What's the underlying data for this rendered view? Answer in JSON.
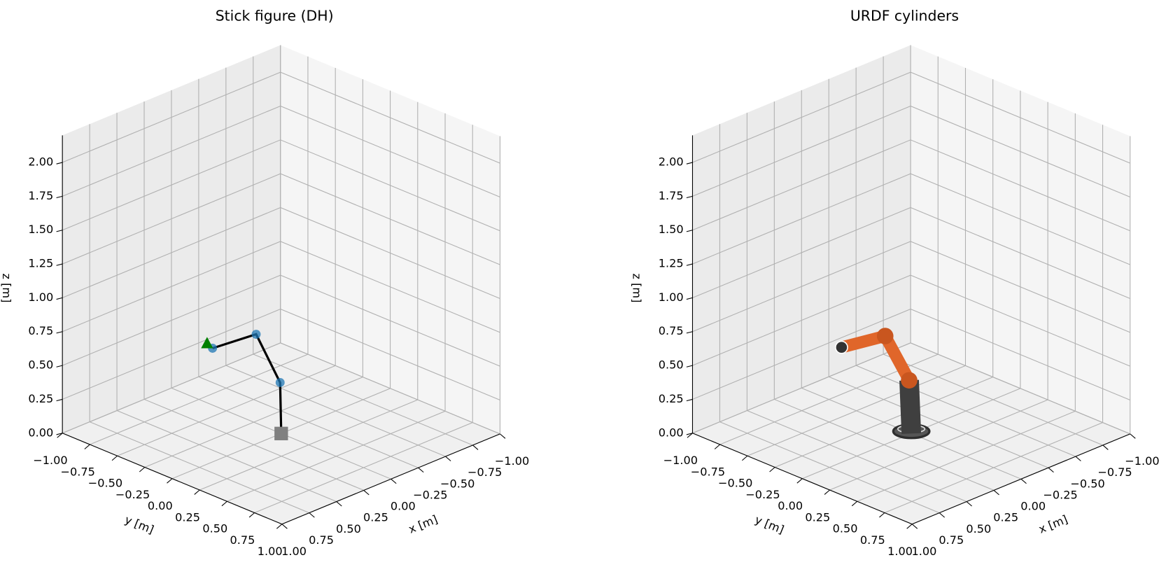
{
  "chart_data": [
    {
      "type": "stick",
      "title": "Stick figure (DH)",
      "xlabel": "x [m]",
      "ylabel": "y [m]",
      "zlabel": "z [m]",
      "xlim": [
        -1,
        1
      ],
      "ylim": [
        -1,
        1
      ],
      "zlim": [
        0,
        2.2
      ],
      "xticks": [
        {
          "value": -1,
          "label": "−1.00"
        },
        {
          "value": -0.75,
          "label": "−0.75"
        },
        {
          "value": -0.5,
          "label": "−0.50"
        },
        {
          "value": -0.25,
          "label": "−0.25"
        },
        {
          "value": 0,
          "label": "0.00"
        },
        {
          "value": 0.25,
          "label": "0.25"
        },
        {
          "value": 0.5,
          "label": "0.50"
        },
        {
          "value": 0.75,
          "label": "0.75"
        },
        {
          "value": 1,
          "label": "1.00"
        }
      ],
      "yticks": [
        {
          "value": -1,
          "label": "−1.00"
        },
        {
          "value": -0.75,
          "label": "−0.75"
        },
        {
          "value": -0.5,
          "label": "−0.50"
        },
        {
          "value": -0.25,
          "label": "−0.25"
        },
        {
          "value": 0,
          "label": "0.00"
        },
        {
          "value": 0.25,
          "label": "0.25"
        },
        {
          "value": 0.5,
          "label": "0.50"
        },
        {
          "value": 0.75,
          "label": "0.75"
        },
        {
          "value": 1,
          "label": "1.00"
        }
      ],
      "zticks": [
        {
          "value": 0,
          "label": "0.00"
        },
        {
          "value": 0.25,
          "label": "0.25"
        },
        {
          "value": 0.5,
          "label": "0.50"
        },
        {
          "value": 0.75,
          "label": "0.75"
        },
        {
          "value": 1,
          "label": "1.00"
        },
        {
          "value": 1.25,
          "label": "1.25"
        },
        {
          "value": 1.5,
          "label": "1.50"
        },
        {
          "value": 1.75,
          "label": "1.75"
        },
        {
          "value": 2,
          "label": "2.00"
        }
      ],
      "x": [
        0,
        0.01,
        0.23,
        0.63
      ],
      "y": [
        0,
        0,
        0,
        0
      ],
      "z": [
        0,
        0.38,
        0.81,
        0.84
      ],
      "color": "#000000",
      "joint_color": "#1f77b4",
      "base_color": "#808080",
      "target": [
        0.68,
        0,
        0.89
      ],
      "target_color": "#008000"
    },
    {
      "type": "robot",
      "title": "URDF cylinders",
      "xlabel": "x [m]",
      "ylabel": "y [m]",
      "zlabel": "z [m]",
      "xlim": [
        -1,
        1
      ],
      "ylim": [
        -1,
        1
      ],
      "zlim": [
        0,
        2.2
      ],
      "xticks": [
        {
          "value": -1,
          "label": "−1.00"
        },
        {
          "value": -0.75,
          "label": "−0.75"
        },
        {
          "value": -0.5,
          "label": "−0.50"
        },
        {
          "value": -0.25,
          "label": "−0.25"
        },
        {
          "value": 0,
          "label": "0.00"
        },
        {
          "value": 0.25,
          "label": "0.25"
        },
        {
          "value": 0.5,
          "label": "0.50"
        },
        {
          "value": 0.75,
          "label": "0.75"
        },
        {
          "value": 1,
          "label": "1.00"
        }
      ],
      "yticks": [
        {
          "value": -1,
          "label": "−1.00"
        },
        {
          "value": -0.75,
          "label": "−0.75"
        },
        {
          "value": -0.5,
          "label": "−0.50"
        },
        {
          "value": -0.25,
          "label": "−0.25"
        },
        {
          "value": 0,
          "label": "0.00"
        },
        {
          "value": 0.25,
          "label": "0.25"
        },
        {
          "value": 0.5,
          "label": "0.50"
        },
        {
          "value": 0.75,
          "label": "0.75"
        },
        {
          "value": 1,
          "label": "1.00"
        }
      ],
      "zticks": [
        {
          "value": 0,
          "label": "0.00"
        },
        {
          "value": 0.25,
          "label": "0.25"
        },
        {
          "value": 0.5,
          "label": "0.50"
        },
        {
          "value": 0.75,
          "label": "0.75"
        },
        {
          "value": 1,
          "label": "1.00"
        },
        {
          "value": 1.25,
          "label": "1.25"
        },
        {
          "value": 1.5,
          "label": "1.50"
        },
        {
          "value": 1.75,
          "label": "1.75"
        },
        {
          "value": 2,
          "label": "2.00"
        }
      ],
      "x": [
        0,
        0.02,
        0.24,
        0.64
      ],
      "y": [
        0,
        0,
        0,
        0
      ],
      "z": [
        0,
        0.4,
        0.8,
        0.85
      ],
      "colors": [
        "#3f3f3f",
        "#e0662a",
        "#e0662a"
      ]
    }
  ]
}
